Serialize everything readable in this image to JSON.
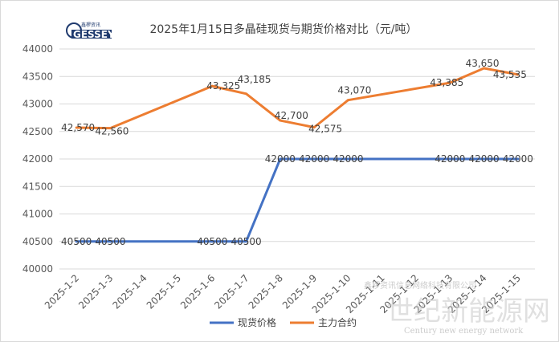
{
  "logo": {
    "top_text": "鑫椤资讯",
    "main_text": "GESSEY"
  },
  "watermark": {
    "main": "世纪新能源网",
    "sub": "Century new energy network",
    "overlay": "鑫椤资讯信息网络科技有限公司"
  },
  "chart_data": {
    "type": "line",
    "title": "2025年1月15日多晶硅现货与期货价格对比（元/吨）",
    "xlabel": "",
    "ylabel": "",
    "categories": [
      "2025-1-2",
      "2025-1-3",
      "2025-1-4",
      "2025-1-5",
      "2025-1-6",
      "2025-1-7",
      "2025-1-8",
      "2025-1-9",
      "2025-1-10",
      "2025-1-11",
      "2025-1-12",
      "2025-1-13",
      "2025-1-14",
      "2025-1-15"
    ],
    "ylim": [
      40000,
      44000
    ],
    "yticks": [
      "40000",
      "40500",
      "41000",
      "41500",
      "42000",
      "42500",
      "43000",
      "43500",
      "44000"
    ],
    "grid": true,
    "legend_position": "bottom",
    "series": [
      {
        "name": "现货价格",
        "color": "#4472c4",
        "points": [
          {
            "x": "2025-1-2",
            "y": 40500,
            "label": "40500"
          },
          {
            "x": "2025-1-3",
            "y": 40500,
            "label": "40500"
          },
          {
            "x": "2025-1-6",
            "y": 40500,
            "label": "40500"
          },
          {
            "x": "2025-1-7",
            "y": 40500,
            "label": "40500"
          },
          {
            "x": "2025-1-8",
            "y": 42000,
            "label": "42000"
          },
          {
            "x": "2025-1-9",
            "y": 42000,
            "label": "42000"
          },
          {
            "x": "2025-1-10",
            "y": 42000,
            "label": "42000"
          },
          {
            "x": "2025-1-13",
            "y": 42000,
            "label": "42000"
          },
          {
            "x": "2025-1-14",
            "y": 42000,
            "label": "42000"
          },
          {
            "x": "2025-1-15",
            "y": 42000,
            "label": "42000"
          }
        ]
      },
      {
        "name": "主力合约",
        "color": "#ed7d31",
        "points": [
          {
            "x": "2025-1-2",
            "y": 42570,
            "label": "42,570"
          },
          {
            "x": "2025-1-3",
            "y": 42560,
            "label": "42,560"
          },
          {
            "x": "2025-1-6",
            "y": 43325,
            "label": "43,325"
          },
          {
            "x": "2025-1-7",
            "y": 43185,
            "label": "43,185"
          },
          {
            "x": "2025-1-8",
            "y": 42700,
            "label": "42,700"
          },
          {
            "x": "2025-1-9",
            "y": 42575,
            "label": "42,575"
          },
          {
            "x": "2025-1-10",
            "y": 43070,
            "label": "43,070"
          },
          {
            "x": "2025-1-13",
            "y": 43385,
            "label": "43,385"
          },
          {
            "x": "2025-1-14",
            "y": 43650,
            "label": "43,650"
          },
          {
            "x": "2025-1-15",
            "y": 43535,
            "label": "43,535"
          }
        ]
      }
    ]
  }
}
